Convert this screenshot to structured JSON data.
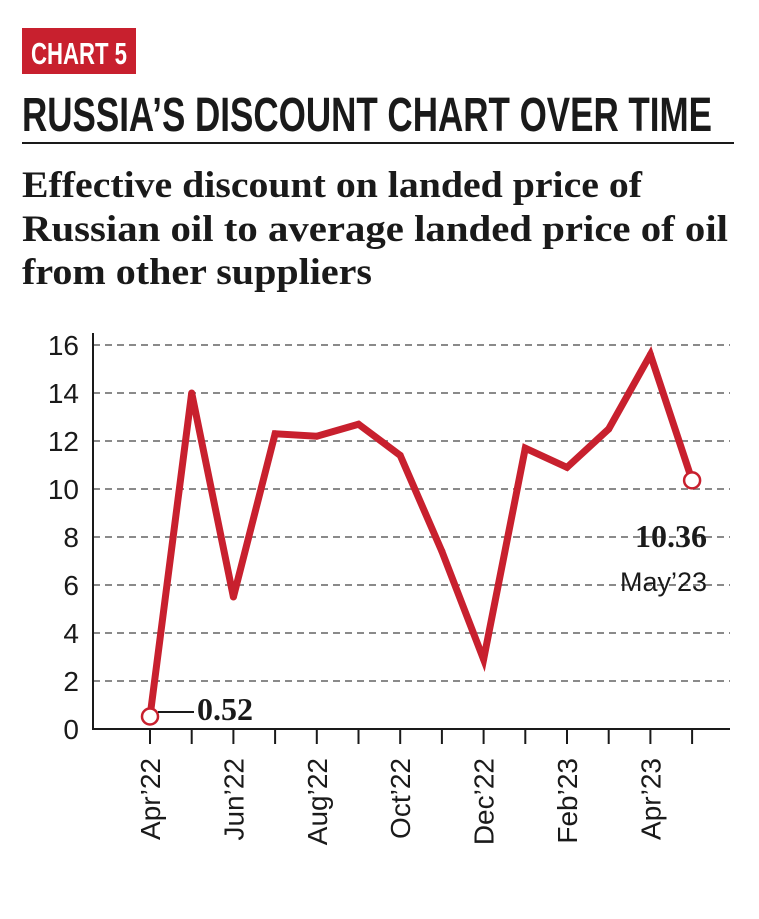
{
  "header": {
    "badge": "CHART 5",
    "title": "RUSSIA’S DISCOUNT CHART OVER TIME",
    "subtitle_lines": [
      "Effective discount on landed price of",
      "Russian oil to average landed price of oil",
      "from other suppliers"
    ]
  },
  "colors": {
    "accent": "#c8202e",
    "grid": "#8a8a8a",
    "text": "#1a1a1a"
  },
  "chart_data": {
    "type": "line",
    "title": "RUSSIA’S DISCOUNT CHART OVER TIME",
    "subtitle": "Effective discount on landed price of Russian oil to average landed price of oil from other suppliers",
    "xlabel": "",
    "ylabel": "",
    "ylim": [
      0,
      16
    ],
    "yticks": [
      "0",
      "2",
      "4",
      "6",
      "8",
      "10",
      "12",
      "14",
      "16"
    ],
    "grid": "horizontal dashed",
    "x": [
      "Apr'22",
      "May'22",
      "Jun'22",
      "Jul'22",
      "Aug'22",
      "Sep'22",
      "Oct'22",
      "Nov'22",
      "Dec'22",
      "Jan'23",
      "Feb'23",
      "Mar'23",
      "Apr'23",
      "May'23"
    ],
    "xtick_labels": [
      "Apr’22",
      "",
      "Jun’22",
      "",
      "Aug’22",
      "",
      "Oct’22",
      "",
      "Dec’22",
      "",
      "Feb’23",
      "",
      "Apr’23",
      ""
    ],
    "series": [
      {
        "values": [
          0.52,
          14.0,
          5.5,
          12.3,
          12.2,
          12.7,
          11.4,
          7.4,
          2.9,
          11.7,
          10.9,
          12.5,
          15.6,
          10.36
        ]
      }
    ],
    "annotations": [
      {
        "point": "Apr'22",
        "value_label": "0.52"
      },
      {
        "point": "May'23",
        "value_label": "10.36",
        "date_label": "May’23"
      }
    ]
  }
}
